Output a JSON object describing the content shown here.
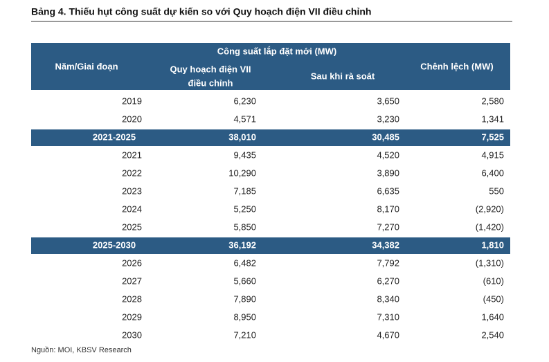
{
  "title": "Bảng 4. Thiếu hụt công suất dự kiến so với Quy hoạch điện VII điều chỉnh",
  "table": {
    "header": {
      "group": "Công suất lắp đặt mới (MW)",
      "period": "Năm/Giai đoạn",
      "plan_line1": "Quy hoạch điện VII",
      "plan_line2": "điều chỉnh",
      "review": "Sau khi rà soát",
      "diff": "Chênh lệch (MW)"
    },
    "rows": [
      {
        "cells": [
          "2019",
          "6,230",
          "3,650",
          "2,580"
        ],
        "highlight": false
      },
      {
        "cells": [
          "2020",
          "4,571",
          "3,230",
          "1,341"
        ],
        "highlight": false
      },
      {
        "cells": [
          "2021-2025",
          "38,010",
          "30,485",
          "7,525"
        ],
        "highlight": true
      },
      {
        "cells": [
          "2021",
          "9,435",
          "4,520",
          "4,915"
        ],
        "highlight": false
      },
      {
        "cells": [
          "2022",
          "10,290",
          "3,890",
          "6,400"
        ],
        "highlight": false
      },
      {
        "cells": [
          "2023",
          "7,185",
          "6,635",
          "550"
        ],
        "highlight": false
      },
      {
        "cells": [
          "2024",
          "5,250",
          "8,170",
          "(2,920)"
        ],
        "highlight": false
      },
      {
        "cells": [
          "2025",
          "5,850",
          "7,270",
          "(1,420)"
        ],
        "highlight": false
      },
      {
        "cells": [
          "2025-2030",
          "36,192",
          "34,382",
          "1,810"
        ],
        "highlight": true
      },
      {
        "cells": [
          "2026",
          "6,482",
          "7,792",
          "(1,310)"
        ],
        "highlight": false
      },
      {
        "cells": [
          "2027",
          "5,660",
          "6,270",
          "(610)"
        ],
        "highlight": false
      },
      {
        "cells": [
          "2028",
          "7,890",
          "8,340",
          "(450)"
        ],
        "highlight": false
      },
      {
        "cells": [
          "2029",
          "8,950",
          "7,310",
          "1,640"
        ],
        "highlight": false
      },
      {
        "cells": [
          "2030",
          "7,210",
          "4,670",
          "2,540"
        ],
        "highlight": false
      }
    ]
  },
  "source": "Nguồn: MOI, KBSV Research"
}
